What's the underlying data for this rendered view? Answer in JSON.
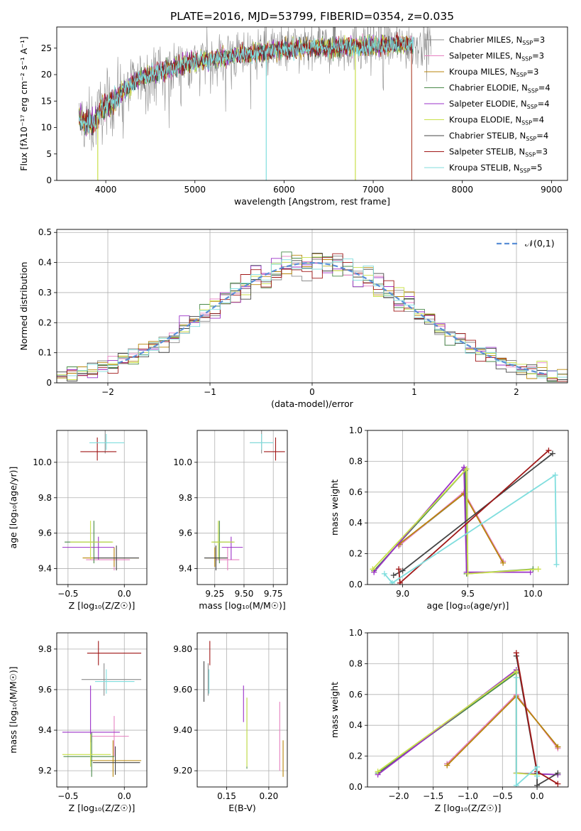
{
  "figure_title": "PLATE=2016, MJD=53799, FIBERID=0354, z=0.035",
  "models": [
    {
      "name": "Chabrier MILES",
      "nssp": "3",
      "color": "#8c8c8c"
    },
    {
      "name": "Salpeter MILES",
      "nssp": "3",
      "color": "#e57fc0"
    },
    {
      "name": "Kroupa MILES",
      "nssp": "3",
      "color": "#b8860b"
    },
    {
      "name": "Chabrier ELODIE",
      "nssp": "4",
      "color": "#4a8a4a"
    },
    {
      "name": "Salpeter ELODIE",
      "nssp": "4",
      "color": "#9b30c8"
    },
    {
      "name": "Kroupa ELODIE",
      "nssp": "4",
      "color": "#c8e04a"
    },
    {
      "name": "Chabrier STELIB",
      "nssp": "4",
      "color": "#454545"
    },
    {
      "name": "Salpeter STELIB",
      "nssp": "3",
      "color": "#a01818"
    },
    {
      "name": "Kroupa STELIB",
      "nssp": "5",
      "color": "#80dede"
    }
  ],
  "legend_nssp_prefix": "N",
  "legend_nssp_sub": "SSP",
  "legend_nssp_eq": "=",
  "chart_data": [
    {
      "id": "spectrum",
      "type": "line",
      "xlabel": "wavelength [Angstrom, rest frame]",
      "ylabel": "Flux [fλ10⁻¹⁷ erg cm⁻² s⁻¹ A⁻¹]",
      "xlim": [
        3450,
        9180
      ],
      "ylim": [
        0,
        29
      ],
      "xticks": [
        4000,
        5000,
        6000,
        7000,
        8000,
        9000
      ],
      "yticks": [
        0,
        5,
        10,
        15,
        20,
        25
      ],
      "legend": "right",
      "grid": false,
      "continuum": [
        [
          3700,
          11.5
        ],
        [
          3850,
          10.5
        ],
        [
          3950,
          13.5
        ],
        [
          4050,
          14.5
        ],
        [
          4200,
          17
        ],
        [
          4400,
          19.5
        ],
        [
          4600,
          20.5
        ],
        [
          4800,
          21.5
        ],
        [
          5000,
          22.5
        ],
        [
          5200,
          23
        ],
        [
          5400,
          23.5
        ],
        [
          5600,
          24
        ],
        [
          5800,
          24.5
        ],
        [
          6000,
          24.7
        ],
        [
          6200,
          25
        ],
        [
          6400,
          25.1
        ],
        [
          6600,
          25.2
        ],
        [
          6800,
          25.3
        ],
        [
          7000,
          25.5
        ],
        [
          7200,
          25.7
        ],
        [
          7400,
          25.9
        ]
      ],
      "series_range": [
        3700,
        7450
      ]
    },
    {
      "id": "residuals",
      "type": "bar",
      "xlabel": "(data-model)/error",
      "ylabel": "Normed distribution",
      "xlim": [
        -2.5,
        2.5
      ],
      "ylim": [
        0,
        0.51
      ],
      "xticks": [
        -2,
        -1,
        0,
        1,
        2
      ],
      "yticks": [
        0.0,
        0.1,
        0.2,
        0.3,
        0.4,
        0.5
      ],
      "legend_label": "𝒩(0,1)",
      "legend": "top-right",
      "grid": true,
      "bin_width": 0.1
    },
    {
      "id": "age_vs_Z",
      "type": "scatter",
      "xlabel": "Z [log₁₀(Z/Z☉)]",
      "ylabel": "age  [log₁₀(age/yr)]",
      "xlim": [
        -0.6,
        0.2
      ],
      "ylim": [
        9.31,
        10.18
      ],
      "xticks": [
        -0.5,
        0.0
      ],
      "yticks": [
        9.4,
        9.6,
        9.8,
        10.0
      ],
      "grid": true,
      "points": [
        {
          "model": 0,
          "x": -0.17,
          "y": 10.11,
          "ex": [
            -0.17,
            0.17
          ],
          "ey": [
            0.06,
            0.07
          ]
        },
        {
          "model": 1,
          "x": -0.09,
          "y": 9.45,
          "ex": [
            0.25,
            0.14
          ],
          "ey": [
            0.06,
            0.07
          ]
        },
        {
          "model": 2,
          "x": -0.09,
          "y": 9.46,
          "ex": [
            0.28,
            0.22
          ],
          "ey": [
            0.05,
            0.06
          ]
        },
        {
          "model": 3,
          "x": -0.27,
          "y": 9.55,
          "ex": [
            0.26,
            0.16
          ],
          "ey": [
            0.12,
            0.12
          ]
        },
        {
          "model": 4,
          "x": -0.23,
          "y": 9.52,
          "ex": [
            0.32,
            0.14
          ],
          "ey": [
            0.07,
            0.06
          ]
        },
        {
          "model": 5,
          "x": -0.3,
          "y": 9.55,
          "ex": [
            0.18,
            0.2
          ],
          "ey": [
            0.1,
            0.12
          ]
        },
        {
          "model": 6,
          "x": -0.07,
          "y": 9.46,
          "ex": [
            0.2,
            0.2
          ],
          "ey": [
            0.07,
            0.07
          ]
        },
        {
          "model": 7,
          "x": -0.24,
          "y": 10.06,
          "ex": [
            0.15,
            0.17
          ],
          "ey": [
            0.05,
            0.08
          ]
        },
        {
          "model": 8,
          "x": -0.16,
          "y": 10.11,
          "ex": [
            0.15,
            0.16
          ],
          "ey": [
            0.04,
            0.05
          ]
        }
      ]
    },
    {
      "id": "age_vs_mass",
      "type": "scatter",
      "xlabel": "mass [log₁₀(M/M☉)]",
      "ylabel": "",
      "xlim": [
        9.1,
        9.87
      ],
      "ylim": [
        9.31,
        10.18
      ],
      "xticks": [
        9.25,
        9.5,
        9.75
      ],
      "yticks": [
        9.4,
        9.6,
        9.8,
        10.0
      ],
      "grid": true,
      "points": [
        {
          "model": 0,
          "x": 9.65,
          "y": 10.11,
          "ex": [
            0.1,
            0.1
          ],
          "ey": [
            0.06,
            0.07
          ]
        },
        {
          "model": 1,
          "x": 9.36,
          "y": 9.45,
          "ex": [
            0.1,
            0.1
          ],
          "ey": [
            0.06,
            0.07
          ]
        },
        {
          "model": 2,
          "x": 9.25,
          "y": 9.46,
          "ex": [
            0.08,
            0.1
          ],
          "ey": [
            0.05,
            0.06
          ]
        },
        {
          "model": 3,
          "x": 9.29,
          "y": 9.55,
          "ex": [
            0.06,
            0.12
          ],
          "ey": [
            0.12,
            0.12
          ]
        },
        {
          "model": 4,
          "x": 9.39,
          "y": 9.52,
          "ex": [
            0.08,
            0.1
          ],
          "ey": [
            0.07,
            0.06
          ]
        },
        {
          "model": 5,
          "x": 9.28,
          "y": 9.55,
          "ex": [
            0.06,
            0.14
          ],
          "ey": [
            0.1,
            0.12
          ]
        },
        {
          "model": 6,
          "x": 9.26,
          "y": 9.46,
          "ex": [
            0.1,
            0.1
          ],
          "ey": [
            0.07,
            0.07
          ]
        },
        {
          "model": 7,
          "x": 9.77,
          "y": 10.06,
          "ex": [
            0.1,
            0.08
          ],
          "ey": [
            0.05,
            0.08
          ]
        },
        {
          "model": 8,
          "x": 9.65,
          "y": 10.11,
          "ex": [
            0.1,
            0.1
          ],
          "ey": [
            0.04,
            0.05
          ]
        }
      ]
    },
    {
      "id": "weight_vs_age",
      "type": "line",
      "xlabel": "age  [log₁₀(age/yr)]",
      "ylabel": "mass weight",
      "xlim": [
        8.73,
        10.27
      ],
      "ylim": [
        0,
        1
      ],
      "xticks": [
        9.0,
        9.5,
        10.0
      ],
      "yticks": [
        0.0,
        0.2,
        0.4,
        0.6,
        0.8,
        1.0
      ],
      "grid": true,
      "series": [
        {
          "model": 0,
          "x": [
            8.98,
            9.47,
            9.77
          ],
          "y": [
            0.26,
            0.59,
            0.15
          ]
        },
        {
          "model": 1,
          "x": [
            8.97,
            9.47,
            9.77
          ],
          "y": [
            0.25,
            0.6,
            0.15
          ]
        },
        {
          "model": 2,
          "x": [
            8.97,
            9.47,
            9.77
          ],
          "y": [
            0.26,
            0.59,
            0.14
          ]
        },
        {
          "model": 3,
          "x": [
            8.78,
            9.48,
            9.49,
            10.0
          ],
          "y": [
            0.09,
            0.74,
            0.07,
            0.1
          ]
        },
        {
          "model": 4,
          "x": [
            8.78,
            9.47,
            9.49,
            9.98
          ],
          "y": [
            0.08,
            0.76,
            0.08,
            0.08
          ]
        },
        {
          "model": 5,
          "x": [
            8.77,
            9.49,
            9.5,
            10.04
          ],
          "y": [
            0.1,
            0.75,
            0.07,
            0.1
          ]
        },
        {
          "model": 6,
          "x": [
            8.93,
            9.0,
            10.15
          ],
          "y": [
            0.06,
            0.09,
            0.85
          ]
        },
        {
          "model": 7,
          "x": [
            8.97,
            8.98,
            10.12
          ],
          "y": [
            0.1,
            0.01,
            0.87
          ]
        },
        {
          "model": 8,
          "x": [
            8.86,
            8.92,
            10.17,
            10.18
          ],
          "y": [
            0.07,
            0.01,
            0.71,
            0.13
          ]
        }
      ]
    },
    {
      "id": "mass_vs_Z",
      "type": "scatter",
      "xlabel": "Z [log₁₀(Z/Z☉)]",
      "ylabel": "mass [log₁₀(M/M☉)]",
      "xlim": [
        -0.6,
        0.2
      ],
      "ylim": [
        9.12,
        9.88
      ],
      "xticks": [
        -0.5,
        0.0
      ],
      "yticks": [
        9.2,
        9.4,
        9.6,
        9.8
      ],
      "grid": true,
      "points": [
        {
          "model": 0,
          "x": -0.18,
          "y": 9.65,
          "ex": [
            0.2,
            0.33
          ],
          "ey": [
            0.08,
            0.08
          ]
        },
        {
          "model": 1,
          "x": -0.09,
          "y": 9.37,
          "ex": [
            0.2,
            0.13
          ],
          "ey": [
            0.1,
            0.1
          ]
        },
        {
          "model": 2,
          "x": -0.1,
          "y": 9.25,
          "ex": [
            0.2,
            0.25
          ],
          "ey": [
            0.08,
            0.1
          ]
        },
        {
          "model": 3,
          "x": -0.29,
          "y": 9.27,
          "ex": [
            0.25,
            0.2
          ],
          "ey": [
            0.1,
            0.12
          ]
        },
        {
          "model": 4,
          "x": -0.3,
          "y": 9.39,
          "ex": [
            0.25,
            0.26
          ],
          "ey": [
            0.05,
            0.23
          ]
        },
        {
          "model": 5,
          "x": -0.3,
          "y": 9.28,
          "ex": [
            0.25,
            0.18
          ],
          "ey": [
            0.06,
            0.1
          ]
        },
        {
          "model": 6,
          "x": -0.08,
          "y": 9.24,
          "ex": [
            0.2,
            0.22
          ],
          "ey": [
            0.06,
            0.08
          ]
        },
        {
          "model": 7,
          "x": -0.23,
          "y": 9.78,
          "ex": [
            0.1,
            0.38
          ],
          "ey": [
            0.06,
            0.06
          ]
        },
        {
          "model": 8,
          "x": -0.16,
          "y": 9.64,
          "ex": [
            0.1,
            0.25
          ],
          "ey": [
            0.06,
            0.06
          ]
        }
      ]
    },
    {
      "id": "mass_vs_ebv",
      "type": "scatter",
      "xlabel": "E(B-V)",
      "ylabel": "",
      "xlim": [
        0.115,
        0.222
      ],
      "ylim": [
        9.12,
        9.88
      ],
      "xticks": [
        0.15,
        0.2
      ],
      "yticks": [
        9.2,
        9.4,
        9.6,
        9.8
      ],
      "grid": true,
      "points": [
        {
          "model": 0,
          "x": 0.128,
          "y": 9.65,
          "ey": [
            0.08,
            0.08
          ]
        },
        {
          "model": 1,
          "x": 0.213,
          "y": 9.37,
          "ey": [
            0.17,
            0.17
          ]
        },
        {
          "model": 2,
          "x": 0.217,
          "y": 9.25,
          "ey": [
            0.08,
            0.1
          ]
        },
        {
          "model": 3,
          "x": 0.174,
          "y": 9.37,
          "ey": [
            0.16,
            0.19
          ]
        },
        {
          "model": 4,
          "x": 0.17,
          "y": 9.5,
          "ey": [
            0.06,
            0.12
          ]
        },
        {
          "model": 5,
          "x": 0.174,
          "y": 9.38,
          "ey": [
            0.16,
            0.18
          ]
        },
        {
          "model": 6,
          "x": 0.123,
          "y": 9.64,
          "ey": [
            0.1,
            0.1
          ]
        },
        {
          "model": 7,
          "x": 0.13,
          "y": 9.78,
          "ey": [
            0.06,
            0.06
          ]
        },
        {
          "model": 8,
          "x": 0.129,
          "y": 9.64,
          "ey": [
            0.06,
            0.06
          ]
        }
      ]
    },
    {
      "id": "weight_vs_Z",
      "type": "line",
      "xlabel": "Z [log₁₀(Z/Z☉)]",
      "ylabel": "mass weight",
      "xlim": [
        -2.45,
        0.45
      ],
      "ylim": [
        0,
        1
      ],
      "xticks": [
        -2.0,
        -1.5,
        -1.0,
        -0.5,
        0.0
      ],
      "yticks": [
        0.0,
        0.2,
        0.4,
        0.6,
        0.8,
        1.0
      ],
      "grid": true,
      "series": [
        {
          "model": 0,
          "x": [
            -1.3,
            -0.3,
            0.3
          ],
          "y": [
            0.15,
            0.59,
            0.26
          ]
        },
        {
          "model": 1,
          "x": [
            -1.3,
            -0.3,
            0.3
          ],
          "y": [
            0.15,
            0.6,
            0.25
          ]
        },
        {
          "model": 2,
          "x": [
            -1.3,
            -0.3,
            0.3
          ],
          "y": [
            0.14,
            0.59,
            0.26
          ]
        },
        {
          "model": 3,
          "x": [
            -2.3,
            -0.3,
            -0.3,
            0.3
          ],
          "y": [
            0.09,
            0.74,
            0.09,
            0.08
          ]
        },
        {
          "model": 4,
          "x": [
            -2.3,
            -0.3,
            -0.3,
            0.3
          ],
          "y": [
            0.08,
            0.76,
            0.09,
            0.08
          ]
        },
        {
          "model": 5,
          "x": [
            -2.3,
            -0.3,
            -0.3,
            0.0
          ],
          "y": [
            0.1,
            0.75,
            0.09,
            0.08
          ]
        },
        {
          "model": 6,
          "x": [
            -0.3,
            0.0,
            0.0,
            0.3
          ],
          "y": [
            0.85,
            0.09,
            0.01,
            0.09
          ]
        },
        {
          "model": 7,
          "x": [
            -0.3,
            0.0,
            0.3
          ],
          "y": [
            0.87,
            0.1,
            0.02
          ]
        },
        {
          "model": 8,
          "x": [
            -0.3,
            -0.3,
            0.0,
            0.0
          ],
          "y": [
            0.71,
            0.01,
            0.13,
            0.07
          ]
        }
      ]
    }
  ]
}
